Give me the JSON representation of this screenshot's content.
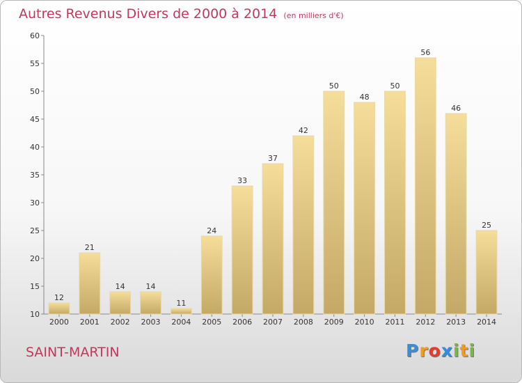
{
  "chart_data": {
    "type": "bar",
    "title": "Autres Revenus Divers de 2000 à 2014",
    "unit": "(en milliers d'€)",
    "categories": [
      "2000",
      "2001",
      "2002",
      "2003",
      "2004",
      "2005",
      "2006",
      "2007",
      "2008",
      "2009",
      "2010",
      "2011",
      "2012",
      "2013",
      "2014"
    ],
    "values": [
      12,
      21,
      14,
      14,
      11,
      24,
      33,
      37,
      42,
      50,
      48,
      50,
      56,
      46,
      25
    ],
    "ylim": [
      10,
      60
    ],
    "yticks": [
      10,
      15,
      20,
      25,
      30,
      35,
      40,
      45,
      50,
      55,
      60
    ],
    "grid": false,
    "colors": {
      "bar_top": "#f5dd9a",
      "bar_bottom": "#c4a866",
      "bar_stroke": "#e8d9a8",
      "title": "#c0385b"
    }
  },
  "location": "SAINT-MARTIN",
  "brand": {
    "letters": [
      "P",
      "r",
      "o",
      "x",
      "i",
      "t",
      "i"
    ],
    "colors": [
      "#3b8ed6",
      "#f39a1f",
      "#e63a2a",
      "#2f8fdc",
      "#7ab648",
      "#f39a1f",
      "#7ab648"
    ]
  }
}
